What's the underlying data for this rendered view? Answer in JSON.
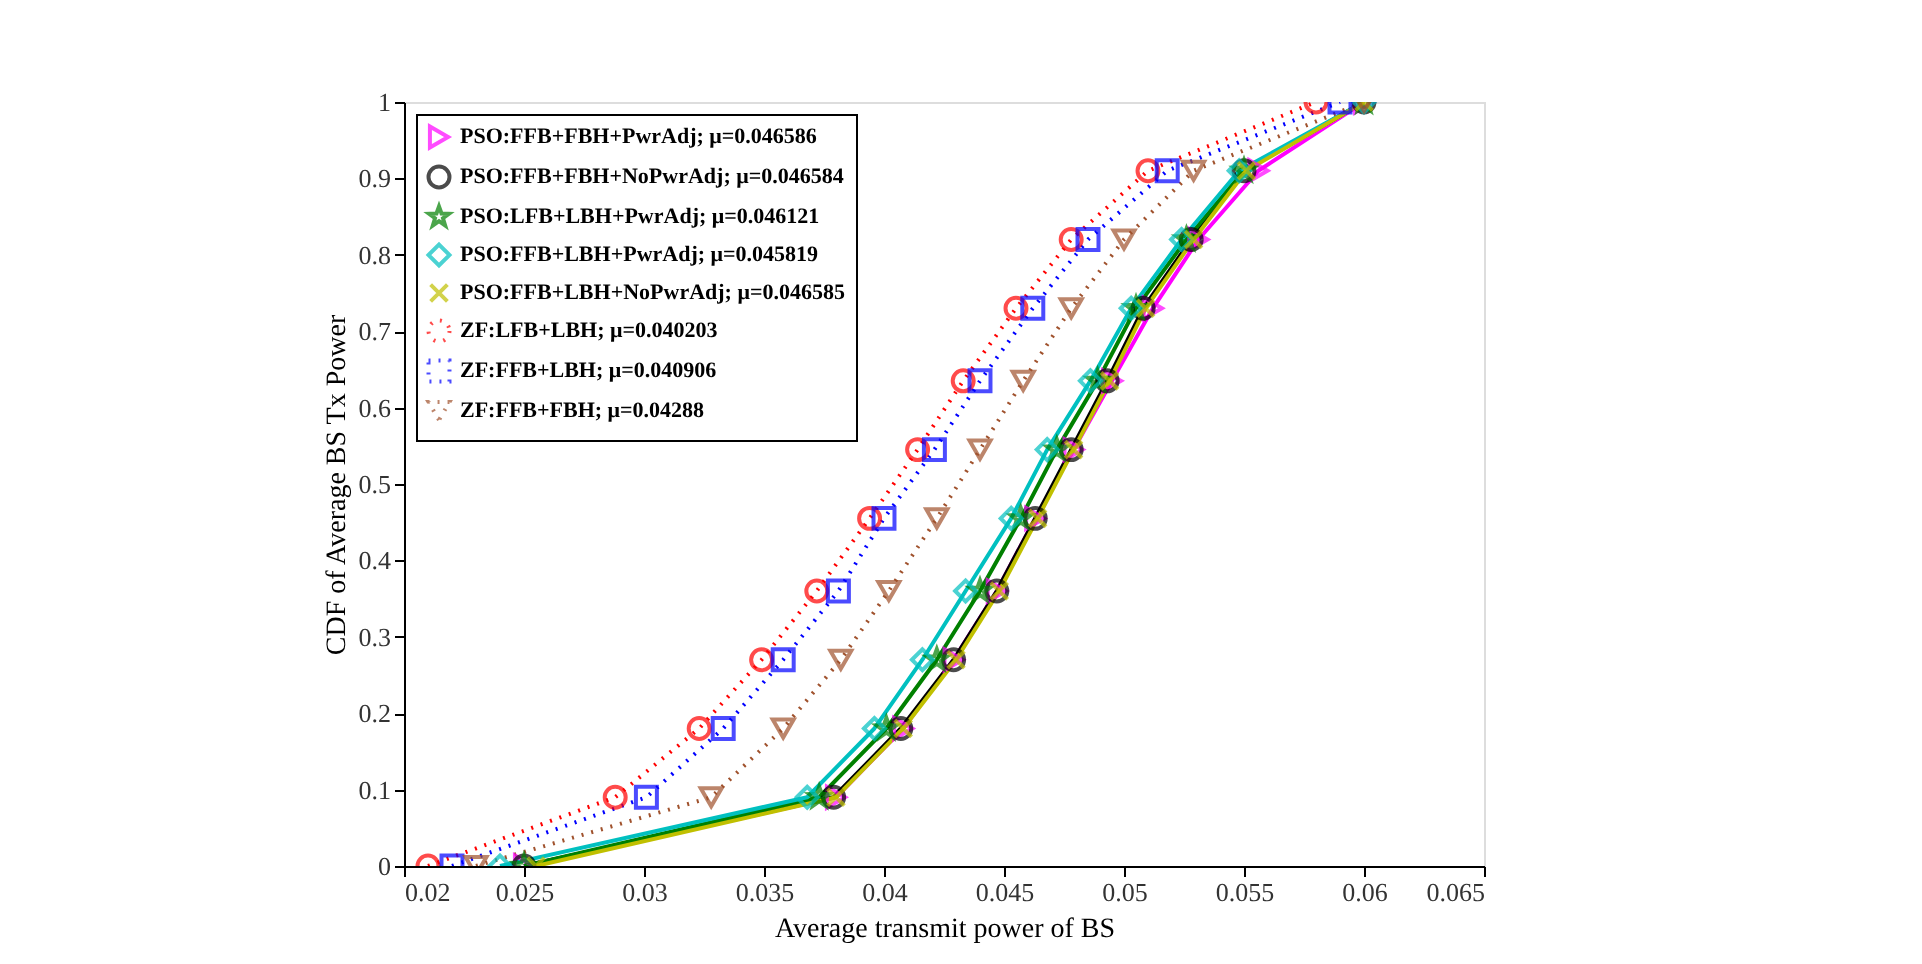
{
  "chart_data": {
    "type": "line",
    "xlabel": "Average transmit power of BS",
    "ylabel": "CDF of Average BS Tx Power",
    "xlim": [
      0.02,
      0.065
    ],
    "ylim": [
      0,
      1
    ],
    "xticks": [
      0.02,
      0.025,
      0.03,
      0.035,
      0.04,
      0.045,
      0.05,
      0.055,
      0.06,
      0.065
    ],
    "yticks": [
      0,
      0.1,
      0.2,
      0.3,
      0.4,
      0.5,
      0.6,
      0.7,
      0.8,
      0.9,
      1
    ],
    "grid": false,
    "legend": "top left",
    "series": [
      {
        "name": "PSO:FFB+FBH+PwrAdj; μ=0.046586",
        "color": "#ff00ff",
        "marker": "triangle-right",
        "line_style": "solid",
        "x": [
          0.025,
          0.038,
          0.0408,
          0.0429,
          0.0447,
          0.0463,
          0.0479,
          0.0495,
          0.0512,
          0.0531,
          0.0556,
          0.06
        ],
        "values": [
          0,
          0.09,
          0.18,
          0.27,
          0.36,
          0.455,
          0.545,
          0.635,
          0.73,
          0.82,
          0.91,
          1
        ]
      },
      {
        "name": "PSO:FFB+FBH+NoPwrAdj; μ=0.046584",
        "color": "#000000",
        "marker": "circle",
        "line_style": "solid",
        "x": [
          0.025,
          0.0379,
          0.0407,
          0.0429,
          0.0447,
          0.0463,
          0.0478,
          0.0493,
          0.0508,
          0.0528,
          0.055,
          0.06
        ],
        "values": [
          0,
          0.09,
          0.18,
          0.27,
          0.36,
          0.455,
          0.545,
          0.635,
          0.73,
          0.82,
          0.91,
          1
        ]
      },
      {
        "name": "PSO:LFB+LBH+PwrAdj; μ=0.046121",
        "color": "#008000",
        "marker": "star",
        "line_style": "solid",
        "x": [
          0.025,
          0.0373,
          0.0401,
          0.0422,
          0.044,
          0.0457,
          0.0472,
          0.0489,
          0.0505,
          0.0526,
          0.055,
          0.06
        ],
        "values": [
          0,
          0.09,
          0.18,
          0.27,
          0.36,
          0.455,
          0.545,
          0.635,
          0.73,
          0.82,
          0.91,
          1
        ]
      },
      {
        "name": "PSO:FFB+LBH+PwrAdj; μ=0.045819",
        "color": "#00c0c0",
        "marker": "diamond",
        "line_style": "solid",
        "x": [
          0.024,
          0.0368,
          0.0396,
          0.0416,
          0.0434,
          0.0453,
          0.0468,
          0.0486,
          0.0503,
          0.0524,
          0.0548,
          0.06
        ],
        "values": [
          0,
          0.09,
          0.18,
          0.27,
          0.36,
          0.455,
          0.545,
          0.635,
          0.73,
          0.82,
          0.91,
          1
        ]
      },
      {
        "name": "PSO:FFB+LBH+NoPwrAdj; μ=0.046585",
        "color": "#c0c000",
        "marker": "cross",
        "line_style": "solid",
        "x": [
          0.0255,
          0.038,
          0.0408,
          0.043,
          0.0448,
          0.0464,
          0.0479,
          0.0494,
          0.0509,
          0.0529,
          0.0551,
          0.06
        ],
        "values": [
          0,
          0.09,
          0.18,
          0.27,
          0.36,
          0.455,
          0.545,
          0.635,
          0.73,
          0.82,
          0.91,
          1
        ]
      },
      {
        "name": "ZF:LFB+LBH; μ=0.040203",
        "color": "#ff0000",
        "marker": "circle",
        "line_style": "dotted",
        "x": [
          0.021,
          0.0288,
          0.0323,
          0.0349,
          0.0372,
          0.0394,
          0.0414,
          0.0433,
          0.0455,
          0.0478,
          0.051,
          0.058
        ],
        "values": [
          0,
          0.09,
          0.18,
          0.27,
          0.36,
          0.455,
          0.545,
          0.635,
          0.73,
          0.82,
          0.91,
          1
        ]
      },
      {
        "name": "ZF:FFB+LBH; μ=0.040906",
        "color": "#0000ff",
        "marker": "square",
        "line_style": "dotted",
        "x": [
          0.022,
          0.0301,
          0.0333,
          0.0358,
          0.0381,
          0.04,
          0.0421,
          0.044,
          0.0462,
          0.0485,
          0.0518,
          0.059
        ],
        "values": [
          0,
          0.09,
          0.18,
          0.27,
          0.36,
          0.455,
          0.545,
          0.635,
          0.73,
          0.82,
          0.91,
          1
        ]
      },
      {
        "name": "ZF:FFB+FBH; μ=0.04288",
        "color": "#a0522d",
        "marker": "triangle-down",
        "line_style": "dotted",
        "x": [
          0.023,
          0.0328,
          0.0358,
          0.0382,
          0.0402,
          0.0422,
          0.044,
          0.0458,
          0.0478,
          0.05,
          0.0529,
          0.06
        ],
        "values": [
          0,
          0.09,
          0.18,
          0.27,
          0.36,
          0.455,
          0.545,
          0.635,
          0.73,
          0.82,
          0.91,
          1
        ]
      }
    ]
  }
}
